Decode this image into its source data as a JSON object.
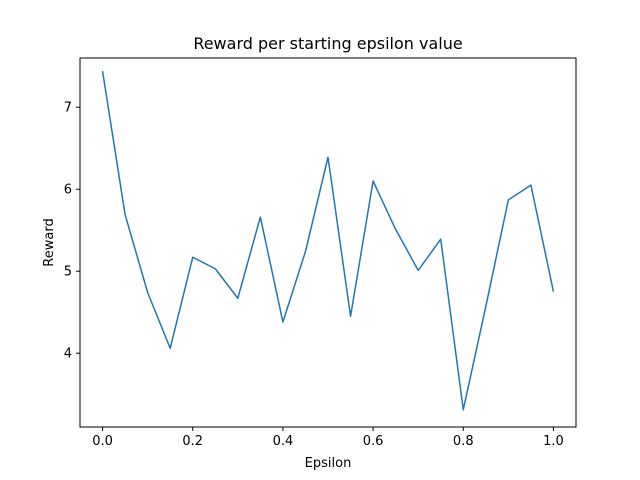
{
  "chart_data": {
    "type": "line",
    "title": "Reward per starting epsilon value",
    "xlabel": "Epsilon",
    "ylabel": "Reward",
    "xlim": [
      -0.05,
      1.05
    ],
    "ylim": [
      3.1,
      7.6
    ],
    "xticks": [
      0.0,
      0.2,
      0.4,
      0.6,
      0.8,
      1.0
    ],
    "xtick_labels": [
      "0.0",
      "0.2",
      "0.4",
      "0.6",
      "0.8",
      "1.0"
    ],
    "yticks": [
      4,
      5,
      6,
      7
    ],
    "ytick_labels": [
      "4",
      "5",
      "6",
      "7"
    ],
    "grid": false,
    "series": [
      {
        "color": "#1f77b4",
        "x": [
          0.0,
          0.05,
          0.1,
          0.15,
          0.2,
          0.25,
          0.3,
          0.35,
          0.4,
          0.45,
          0.5,
          0.55,
          0.6,
          0.65,
          0.7,
          0.75,
          0.8,
          0.85,
          0.9,
          0.95,
          1.0
        ],
        "y": [
          7.44,
          5.69,
          4.74,
          4.06,
          5.17,
          5.03,
          4.67,
          5.66,
          4.38,
          5.24,
          6.39,
          4.45,
          6.1,
          5.51,
          5.01,
          5.39,
          3.31,
          4.57,
          5.87,
          6.05,
          4.75
        ]
      }
    ]
  }
}
